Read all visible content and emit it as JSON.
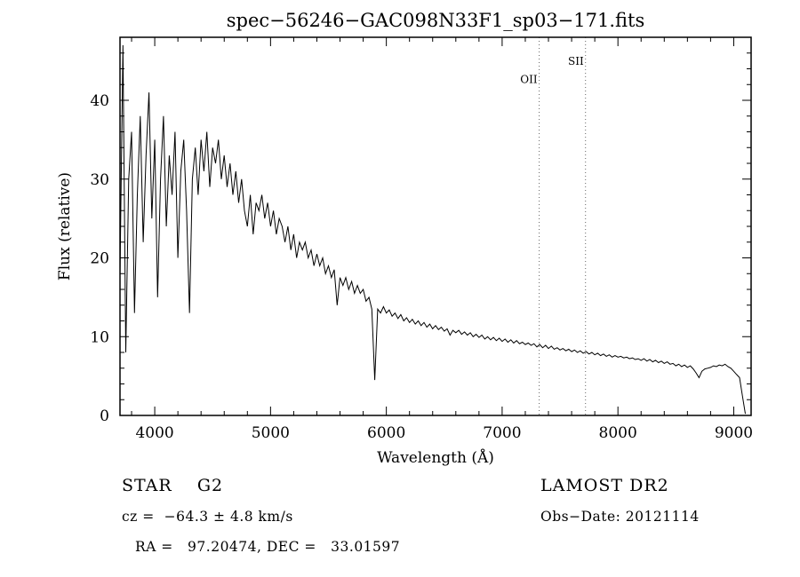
{
  "chart_data": {
    "type": "line",
    "title": "spec−56246−GAC098N33F1_sp03−171.fits",
    "xlabel": "Wavelength (Å)",
    "ylabel": "Flux (relative)",
    "xlim": [
      3700,
      9150
    ],
    "ylim": [
      0,
      48
    ],
    "x_ticks": [
      4000,
      5000,
      6000,
      7000,
      8000,
      9000
    ],
    "y_ticks": [
      0,
      10,
      20,
      30,
      40
    ],
    "x_minor_step": 200,
    "y_minor_step": 2,
    "line_color": "#000000",
    "ref_line_color": "#666666",
    "x_start": 3700,
    "x_step": 25,
    "flux": [
      18,
      47,
      8,
      30,
      36,
      13,
      28,
      38,
      22,
      33,
      41,
      25,
      35,
      15,
      30,
      38,
      24,
      33,
      28,
      36,
      20,
      31,
      35,
      26,
      13,
      30,
      34,
      28,
      35,
      31,
      36,
      29,
      34,
      32,
      35,
      30,
      33,
      29,
      32,
      28,
      31,
      27,
      30,
      26,
      24,
      28,
      23,
      27,
      26,
      28,
      25,
      27,
      24,
      26,
      23,
      25,
      24,
      22,
      24,
      21,
      23,
      20,
      22,
      21,
      22,
      20,
      21,
      19,
      20.5,
      19,
      20,
      18,
      19,
      17.5,
      18.5,
      14,
      17.5,
      16.5,
      17.5,
      16,
      17,
      15.5,
      16.5,
      15.5,
      16,
      14.5,
      15,
      13.5,
      4.5,
      13.5,
      13,
      13.8,
      13,
      13.4,
      12.6,
      13,
      12.3,
      12.8,
      12,
      12.4,
      11.8,
      12.2,
      11.6,
      12,
      11.4,
      11.8,
      11.2,
      11.6,
      11,
      11.4,
      10.9,
      11.2,
      10.7,
      11,
      10.2,
      10.8,
      10.5,
      10.8,
      10.3,
      10.6,
      10.2,
      10.5,
      10,
      10.3,
      9.9,
      10.2,
      9.7,
      10,
      9.6,
      9.9,
      9.5,
      9.8,
      9.4,
      9.7,
      9.3,
      9.6,
      9.2,
      9.5,
      9.1,
      9.3,
      9,
      9.2,
      8.9,
      9.1,
      8.7,
      9,
      8.6,
      8.9,
      8.5,
      8.8,
      8.4,
      8.6,
      8.3,
      8.5,
      8.2,
      8.4,
      8.1,
      8.3,
      8,
      8.2,
      7.9,
      8.1,
      7.8,
      8,
      7.7,
      7.9,
      7.6,
      7.8,
      7.5,
      7.7,
      7.4,
      7.6,
      7.4,
      7.5,
      7.3,
      7.4,
      7.2,
      7.3,
      7.1,
      7.2,
      7,
      7.2,
      6.9,
      7.1,
      6.8,
      7,
      6.7,
      6.9,
      6.6,
      6.8,
      6.5,
      6.6,
      6.3,
      6.5,
      6.2,
      6.4,
      6.1,
      6.3,
      5.9,
      5.4,
      4.8,
      5.6,
      5.9,
      6,
      6.1,
      6.3,
      6.2,
      6.4,
      6.3,
      6.5,
      6.2,
      6,
      5.6,
      5.2,
      4.8,
      2.5,
      0.2
    ],
    "reference_lines": [
      {
        "label": "OII",
        "wavelength": 7320,
        "label_flux": 42.2
      },
      {
        "label": "SII",
        "wavelength": 7720,
        "label_flux": 44.5
      }
    ]
  },
  "annotations": {
    "class_label": "STAR    G2",
    "survey": "LAMOST DR2",
    "cz": "cz =  −64.3 ± 4.8 km/s",
    "obs_date": "Obs−Date: 20121114",
    "radec": "RA =   97.20474, DEC =   33.01597"
  }
}
